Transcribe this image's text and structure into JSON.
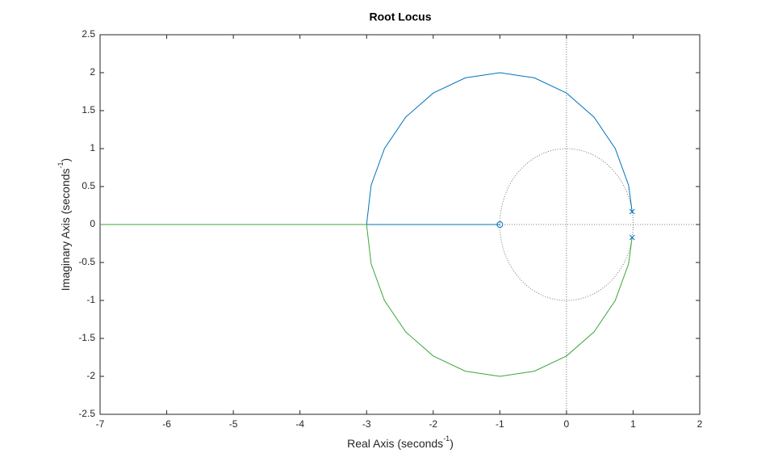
{
  "chart_data": {
    "type": "root-locus",
    "title": "Root Locus",
    "xlabel": {
      "text": "Real Axis (seconds",
      "sup": "-1",
      "end": ")"
    },
    "ylabel": {
      "text": "Imaginary Axis (seconds",
      "sup": "-1",
      "end": ")"
    },
    "xlim": [
      -7,
      2
    ],
    "xticks": [
      -7,
      -6,
      -5,
      -4,
      -3,
      -2,
      -1,
      0,
      1,
      2
    ],
    "ylim": [
      -2.5,
      2.5
    ],
    "yticks": [
      -2.5,
      -2,
      -1.5,
      -1,
      -0.5,
      0,
      0.5,
      1,
      1.5,
      2,
      2.5
    ],
    "reference_lines": {
      "x": 0,
      "y": 0
    },
    "unit_circle": {
      "radius": 1
    },
    "series": [
      {
        "color": "#0072bd",
        "x": [
          0.985,
          0.932,
          0.732,
          0.414,
          0,
          -0.482,
          -1,
          -1.518,
          -2,
          -2.414,
          -2.732,
          -2.932,
          -3,
          -1
        ],
        "values": [
          0.17,
          0.518,
          1.0,
          1.414,
          1.732,
          1.932,
          2,
          1.932,
          1.732,
          1.414,
          1.0,
          0.518,
          0,
          0
        ]
      },
      {
        "color": "#3aa63a",
        "x": [
          0.985,
          0.932,
          0.732,
          0.414,
          0,
          -0.482,
          -1,
          -1.518,
          -2,
          -2.414,
          -2.732,
          -2.932,
          -3,
          -7
        ],
        "values": [
          -0.17,
          -0.518,
          -1.0,
          -1.414,
          -1.732,
          -1.932,
          -2,
          -1.932,
          -1.732,
          -1.414,
          -1.0,
          -0.518,
          0,
          0
        ]
      }
    ],
    "poles": {
      "color": "#0072bd",
      "x": [
        0.985,
        0.985
      ],
      "y": [
        0.17,
        -0.17
      ]
    },
    "zeros": {
      "color": "#0072bd",
      "x": [
        -1
      ],
      "y": [
        0
      ]
    }
  }
}
